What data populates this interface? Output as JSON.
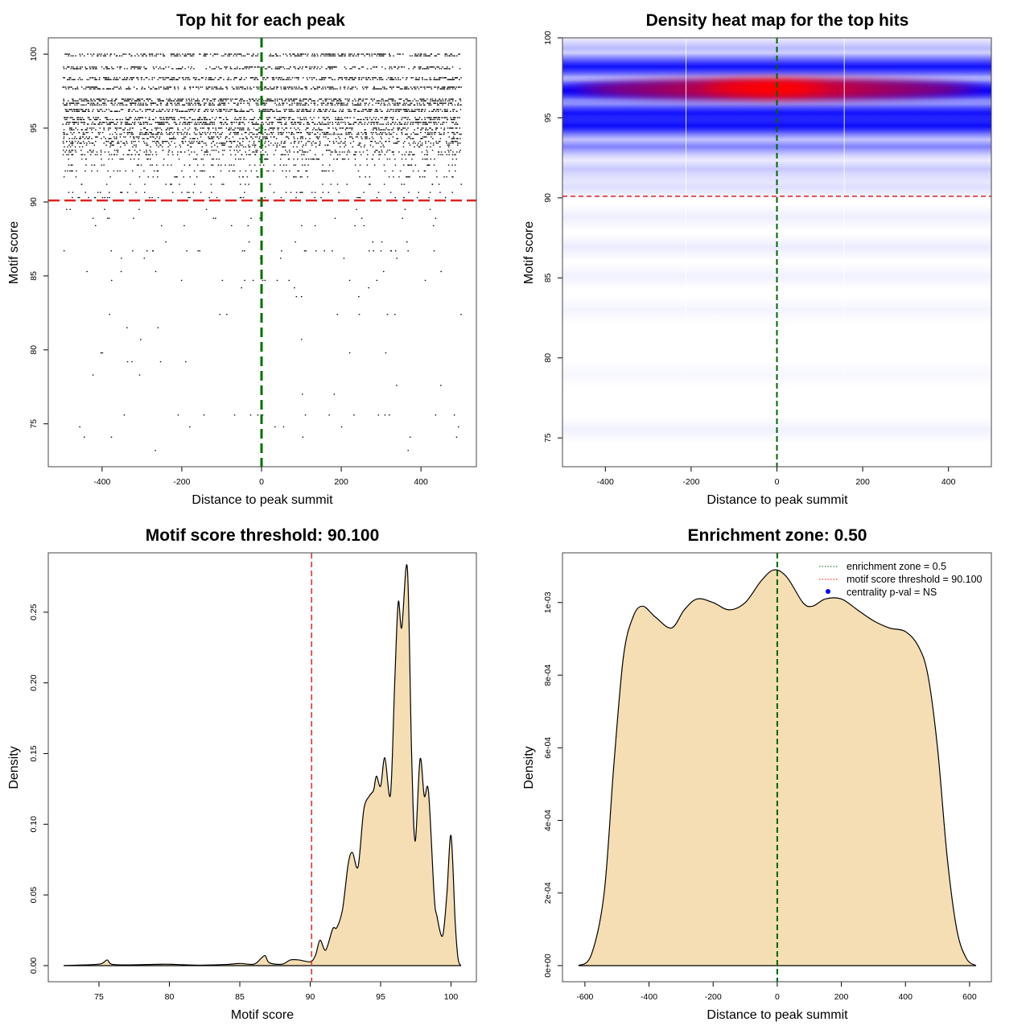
{
  "chart_data": [
    {
      "type": "scatter",
      "title": "Top hit for each peak",
      "xlabel": "Distance to peak summit",
      "ylabel": "Motif score",
      "xlim": [
        -535,
        539
      ],
      "ylim": [
        72.1,
        101.1
      ],
      "xticks": [
        "-400",
        "-200",
        "0",
        "200",
        "400"
      ],
      "xtick_values": [
        -400,
        -200,
        0,
        200,
        400
      ],
      "yticks": [
        "75",
        "80",
        "85",
        "90",
        "95",
        "100"
      ],
      "ytick_values": [
        75,
        80,
        85,
        90,
        95,
        100
      ],
      "x_range_of_points": [
        -500,
        500
      ],
      "score_levels_with_counts": [
        [
          100,
          350
        ],
        [
          99.13,
          300
        ],
        [
          98.4,
          380
        ],
        [
          97.77,
          400
        ],
        [
          96.96,
          420
        ],
        [
          96.68,
          380
        ],
        [
          96.25,
          400
        ],
        [
          95.7,
          330
        ],
        [
          95.38,
          380
        ],
        [
          95.0,
          250
        ],
        [
          94.7,
          300
        ],
        [
          94.4,
          200
        ],
        [
          94.1,
          220
        ],
        [
          93.85,
          120
        ],
        [
          93.5,
          150
        ],
        [
          93.2,
          100
        ],
        [
          92.9,
          80
        ],
        [
          92.5,
          70
        ],
        [
          92.1,
          60
        ],
        [
          91.7,
          50
        ],
        [
          91.2,
          30
        ],
        [
          90.65,
          40
        ],
        [
          90.3,
          35
        ],
        [
          89.5,
          8
        ],
        [
          88.9,
          12
        ],
        [
          88.4,
          10
        ],
        [
          87.3,
          6
        ],
        [
          86.7,
          25
        ],
        [
          86.2,
          6
        ],
        [
          85.3,
          5
        ],
        [
          84.7,
          12
        ],
        [
          84.2,
          3
        ],
        [
          83.6,
          3
        ],
        [
          82.4,
          8
        ],
        [
          81.5,
          2
        ],
        [
          80.7,
          2
        ],
        [
          79.8,
          4
        ],
        [
          79.2,
          4
        ],
        [
          78.3,
          2
        ],
        [
          77.6,
          2
        ],
        [
          77.0,
          2
        ],
        [
          75.6,
          15
        ],
        [
          74.8,
          6
        ],
        [
          74.1,
          5
        ],
        [
          73.2,
          2
        ]
      ],
      "hline": 90.1,
      "vline": 0
    },
    {
      "type": "heatmap",
      "title": "Density heat map for the top hits",
      "xlabel": "Distance to peak summit",
      "ylabel": "Motif score",
      "xlim": [
        -500,
        500
      ],
      "ylim": [
        73.2,
        100
      ],
      "xticks": [
        "-400",
        "-200",
        "0",
        "200",
        "400"
      ],
      "xtick_values": [
        -400,
        -200,
        0,
        200,
        400
      ],
      "yticks": [
        "75",
        "80",
        "85",
        "90",
        "95",
        "100"
      ],
      "ytick_values": [
        75,
        80,
        85,
        90,
        95,
        100
      ],
      "density_bands": [
        [
          99.35,
          0.25
        ],
        [
          98.2,
          0.75
        ],
        [
          96.7,
          1.0
        ],
        [
          95.3,
          0.75
        ],
        [
          94.5,
          0.8
        ],
        [
          93.2,
          0.45
        ],
        [
          91.8,
          0.2
        ],
        [
          90.7,
          0.12
        ],
        [
          88.8,
          0.06
        ],
        [
          86.9,
          0.07
        ],
        [
          85.1,
          0.05
        ],
        [
          83.0,
          0.04
        ],
        [
          79.0,
          0.03
        ],
        [
          75.5,
          0.05
        ]
      ],
      "peak_density": {
        "x": -30,
        "y": 96.8
      },
      "hline": 90.1,
      "vline": 0,
      "colors": {
        "low": "#ffffff",
        "mid": "#0000ff",
        "high": "#ff0000"
      }
    },
    {
      "type": "area",
      "title": "Motif score threshold: 90.100",
      "xlabel": "Motif score",
      "ylabel": "Density",
      "xlim": [
        71.4,
        101.8
      ],
      "ylim": [
        -0.0114,
        0.292
      ],
      "xticks": [
        "75",
        "80",
        "85",
        "90",
        "95",
        "100"
      ],
      "xtick_values": [
        75,
        80,
        85,
        90,
        95,
        100
      ],
      "yticks": [
        "0.00",
        "0.05",
        "0.10",
        "0.15",
        "0.20",
        "0.25"
      ],
      "ytick_values": [
        0,
        0.05,
        0.1,
        0.15,
        0.2,
        0.25
      ],
      "points": [
        [
          72.5,
          0
        ],
        [
          74,
          0.0005
        ],
        [
          75,
          0.001
        ],
        [
          75.3,
          0.002
        ],
        [
          75.6,
          0.004
        ],
        [
          75.9,
          0.001
        ],
        [
          77,
          0.0005
        ],
        [
          79.5,
          0.001
        ],
        [
          80.5,
          0.0008
        ],
        [
          82,
          0.0003
        ],
        [
          84,
          0.0008
        ],
        [
          85,
          0.0015
        ],
        [
          86,
          0.001
        ],
        [
          86.5,
          0.005
        ],
        [
          86.8,
          0.007
        ],
        [
          87.1,
          0.002
        ],
        [
          88,
          0.001
        ],
        [
          88.6,
          0.004
        ],
        [
          89.2,
          0.004
        ],
        [
          89.7,
          0.003
        ],
        [
          90.1,
          0.003
        ],
        [
          90.4,
          0.008
        ],
        [
          90.7,
          0.018
        ],
        [
          91.1,
          0.011
        ],
        [
          91.6,
          0.026
        ],
        [
          91.9,
          0.027
        ],
        [
          92.3,
          0.04
        ],
        [
          92.7,
          0.072
        ],
        [
          93.0,
          0.08
        ],
        [
          93.4,
          0.07
        ],
        [
          93.8,
          0.11
        ],
        [
          94.2,
          0.12
        ],
        [
          94.5,
          0.124
        ],
        [
          94.7,
          0.134
        ],
        [
          95.0,
          0.127
        ],
        [
          95.3,
          0.147
        ],
        [
          95.7,
          0.121
        ],
        [
          96.0,
          0.2
        ],
        [
          96.25,
          0.257
        ],
        [
          96.5,
          0.239
        ],
        [
          96.9,
          0.281
        ],
        [
          97.2,
          0.15
        ],
        [
          97.45,
          0.088
        ],
        [
          97.8,
          0.146
        ],
        [
          98.1,
          0.12
        ],
        [
          98.4,
          0.123
        ],
        [
          98.8,
          0.05
        ],
        [
          99.0,
          0.035
        ],
        [
          99.4,
          0.021
        ],
        [
          99.7,
          0.05
        ],
        [
          100.0,
          0.092
        ],
        [
          100.3,
          0.03
        ],
        [
          100.5,
          0.005
        ],
        [
          100.7,
          0
        ]
      ],
      "vline": 90.1,
      "fill": "#f5deb3"
    },
    {
      "type": "area",
      "title": "Enrichment zone: 0.50",
      "xlabel": "Distance to peak summit",
      "ylabel": "Density",
      "xlim": [
        -670,
        668
      ],
      "ylim": [
        -4.43e-05,
        0.001137
      ],
      "xticks": [
        "-600",
        "-400",
        "-200",
        "0",
        "200",
        "400",
        "600"
      ],
      "xtick_values": [
        -600,
        -400,
        -200,
        0,
        200,
        400,
        600
      ],
      "yticks": [
        "0e+00",
        "2e-04",
        "4e-04",
        "6e-04",
        "8e-04",
        "1e-03"
      ],
      "ytick_values": [
        0,
        0.0002,
        0.0004,
        0.0006,
        0.0008,
        0.001
      ],
      "points": [
        [
          -620,
          0
        ],
        [
          -580,
          3e-05
        ],
        [
          -540,
          0.0002
        ],
        [
          -510,
          0.00055
        ],
        [
          -480,
          0.00085
        ],
        [
          -450,
          0.00096
        ],
        [
          -420,
          0.00099
        ],
        [
          -380,
          0.00096
        ],
        [
          -330,
          0.00093
        ],
        [
          -290,
          0.00098
        ],
        [
          -250,
          0.00101
        ],
        [
          -200,
          0.001
        ],
        [
          -150,
          0.00098
        ],
        [
          -100,
          0.001
        ],
        [
          -50,
          0.00106
        ],
        [
          -10,
          0.00109
        ],
        [
          30,
          0.00107
        ],
        [
          80,
          0.001
        ],
        [
          110,
          0.00099
        ],
        [
          150,
          0.00101
        ],
        [
          200,
          0.00101
        ],
        [
          250,
          0.00098
        ],
        [
          300,
          0.00095
        ],
        [
          350,
          0.00093
        ],
        [
          400,
          0.00092
        ],
        [
          440,
          0.00088
        ],
        [
          470,
          0.0008
        ],
        [
          500,
          0.0006
        ],
        [
          530,
          0.0003
        ],
        [
          560,
          0.0001
        ],
        [
          590,
          2e-05
        ],
        [
          620,
          0
        ]
      ],
      "vline": 0,
      "fill": "#f5deb3",
      "legend": {
        "position": "top-right",
        "entries": [
          {
            "label": "enrichment zone = 0.5",
            "color": "#006400",
            "symbol": "dotted-line"
          },
          {
            "label": "motif score threshold = 90.100",
            "color": "#ff0000",
            "symbol": "dotted-line"
          },
          {
            "label": "centrality p-val = NS",
            "color": "#0000ff",
            "symbol": "dot"
          }
        ]
      }
    }
  ]
}
